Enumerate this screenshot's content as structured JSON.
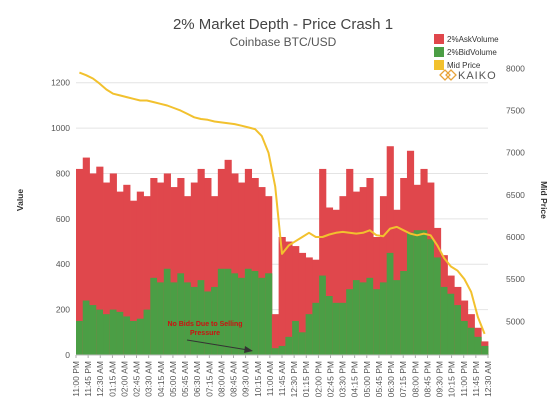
{
  "chart_data": {
    "type": "area",
    "title": "2% Market Depth - Price Crash 1",
    "subtitle": "Coinbase BTC/USD",
    "ylabel_left": "Value",
    "ylabel_right": "Mid Price",
    "ylim_left": [
      0,
      1300
    ],
    "ylim_right": [
      4600,
      8100
    ],
    "yticks_left": [
      0,
      200,
      400,
      600,
      800,
      1000,
      1200
    ],
    "yticks_right": [
      5000,
      5500,
      6000,
      6500,
      7000,
      7500,
      8000
    ],
    "x_tick_labels": [
      "11:00 PM",
      "11:45 PM",
      "12:30 AM",
      "01:15 AM",
      "02:00 AM",
      "02:45 AM",
      "03:30 AM",
      "04:15 AM",
      "05:00 AM",
      "05:45 AM",
      "06:30 AM",
      "07:15 AM",
      "08:00 AM",
      "08:45 AM",
      "09:30 AM",
      "10:15 AM",
      "11:00 AM",
      "11:45 AM",
      "12:30 PM",
      "01:15 PM",
      "02:00 PM",
      "02:45 PM",
      "03:30 PM",
      "04:15 PM",
      "05:00 PM",
      "05:45 PM",
      "06:30 PM",
      "07:15 PM",
      "08:00 PM",
      "08:45 PM",
      "09:30 PM",
      "10:15 PM",
      "11:00 PM",
      "11:45 PM",
      "12:30 AM"
    ],
    "series": [
      {
        "name": "2%AskVolume",
        "color": "#e0474c",
        "values": [
          820,
          870,
          800,
          830,
          760,
          800,
          720,
          750,
          680,
          720,
          700,
          780,
          760,
          800,
          740,
          780,
          700,
          760,
          820,
          780,
          700,
          820,
          860,
          800,
          760,
          820,
          780,
          740,
          700,
          180,
          520,
          500,
          480,
          450,
          430,
          420,
          820,
          650,
          640,
          700,
          820,
          720,
          740,
          780,
          520,
          700,
          920,
          640,
          780,
          900,
          750,
          820,
          760,
          560,
          440,
          350,
          300,
          240,
          180,
          120,
          60
        ]
      },
      {
        "name": "2%BidVolume",
        "color": "#4b9e45",
        "values": [
          150,
          240,
          220,
          200,
          180,
          200,
          190,
          170,
          150,
          160,
          200,
          340,
          320,
          380,
          320,
          360,
          320,
          300,
          330,
          280,
          300,
          380,
          380,
          360,
          340,
          380,
          370,
          340,
          360,
          30,
          40,
          80,
          150,
          100,
          180,
          230,
          350,
          260,
          230,
          230,
          290,
          330,
          320,
          340,
          290,
          320,
          450,
          330,
          370,
          540,
          550,
          550,
          510,
          430,
          300,
          270,
          220,
          150,
          120,
          80,
          40
        ]
      },
      {
        "name": "Mid Price",
        "color": "#f2c12e",
        "values": [
          7950,
          7920,
          7880,
          7820,
          7750,
          7700,
          7680,
          7660,
          7640,
          7620,
          7620,
          7600,
          7580,
          7560,
          7530,
          7500,
          7460,
          7420,
          7400,
          7390,
          7370,
          7360,
          7350,
          7340,
          7320,
          7300,
          7280,
          7200,
          7000,
          6600,
          5800,
          5900,
          5950,
          6000,
          6050,
          6000,
          6000,
          6030,
          6050,
          6060,
          6050,
          6040,
          6050,
          6080,
          6020,
          6010,
          6100,
          6120,
          6080,
          6040,
          6020,
          6040,
          6020,
          5900,
          5750,
          5650,
          5600,
          5500,
          5350,
          5050,
          4850
        ]
      }
    ],
    "legend": [
      "2%AskVolume",
      "2%BidVolume",
      "Mid Price"
    ],
    "legend_position": "top-right",
    "annotation": {
      "text_line1": "No Bids Due to Selling",
      "text_line2": "Pressure"
    },
    "grid": true
  },
  "logo_text": "KAIKO"
}
